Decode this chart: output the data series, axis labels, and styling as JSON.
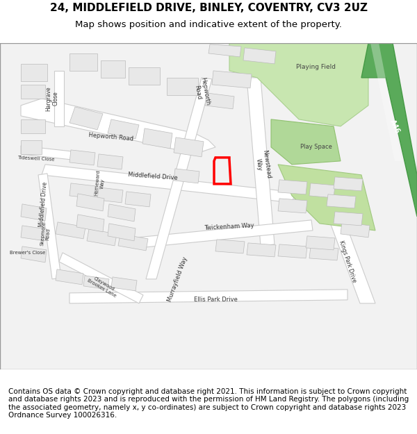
{
  "title_line1": "24, MIDDLEFIELD DRIVE, BINLEY, COVENTRY, CV3 2UZ",
  "title_line2": "Map shows position and indicative extent of the property.",
  "footer_text": "Contains OS data © Crown copyright and database right 2021. This information is subject to Crown copyright and database rights 2023 and is reproduced with the permission of HM Land Registry. The polygons (including the associated geometry, namely x, y co-ordinates) are subject to Crown copyright and database rights 2023 Ordnance Survey 100026316.",
  "bg_color": "#ffffff",
  "map_bg": "#f0f0f0",
  "road_color": "#ffffff",
  "road_stroke": "#cccccc",
  "building_fill": "#e0e0e0",
  "building_stroke": "#cccccc",
  "green_light": "#b8d9a0",
  "green_dark": "#6aaa6a",
  "highlight_color": "#ff0000",
  "diagonal_road_color": "#44aa44",
  "title_fontsize": 11,
  "subtitle_fontsize": 9.5,
  "footer_fontsize": 7.5,
  "fig_width": 6.0,
  "fig_height": 6.25,
  "dpi": 100
}
